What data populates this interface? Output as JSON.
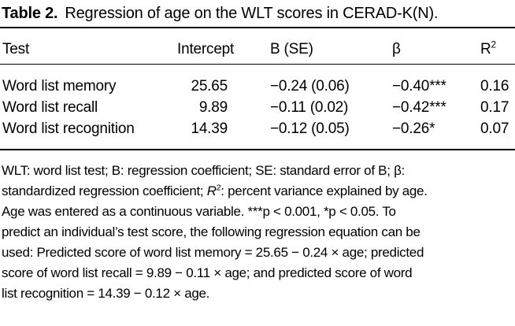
{
  "title": {
    "label": "Table 2.",
    "text": "Regression of age on the WLT scores in CERAD-K(N)."
  },
  "table": {
    "headers": {
      "test": "Test",
      "intercept": "Intercept",
      "b_se": "B (SE)",
      "beta": "β",
      "r2_base": "R",
      "r2_sup": "2"
    },
    "rows": [
      {
        "test": "Word list memory",
        "intercept": "25.65",
        "b_se": "−0.24 (0.06)",
        "beta": "−0.40***",
        "r2": "0.16"
      },
      {
        "test": "Word list recall",
        "intercept": "9.89",
        "b_se": "−0.11 (0.02)",
        "beta": "−0.42***",
        "r2": "0.17"
      },
      {
        "test": "Word list recognition",
        "intercept": "14.39",
        "b_se": "−0.12 (0.05)",
        "beta": "−0.26*",
        "r2": "0.07"
      }
    ]
  },
  "footnote": {
    "line1": "WLT: word list test; B: regression coefficient; SE: standard error of B; β:",
    "line2_pre": "standardized regression coefficient; ",
    "line2_r": "R",
    "line2_sup": "2",
    "line2_post": ": percent variance explained by age.",
    "line3": "Age was entered as a continuous variable. ***p < 0.001, *p < 0.05. To",
    "line4": "predict an individual’s test score, the following regression equation can be",
    "line5": "used: Predicted score of word list memory = 25.65 − 0.24 × age; predicted",
    "line6": "score of word list recall = 9.89 − 0.11 × age; and predicted score of word",
    "line7": "list recognition = 14.39 − 0.12 × age."
  },
  "colors": {
    "text": "#000000",
    "background": "#ffffff",
    "rule": "#000000"
  }
}
